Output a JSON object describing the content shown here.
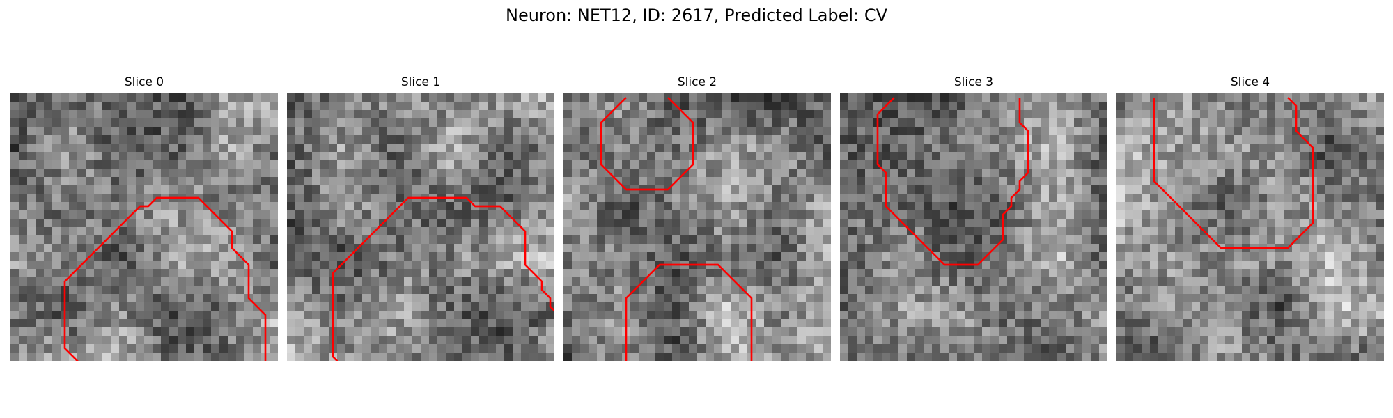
{
  "figure": {
    "title": "Neuron: NET12, ID: 2617, Predicted Label: CV",
    "contour_color": "#ff0000",
    "colormap": "gray"
  },
  "panels": [
    {
      "title": "Slice 0",
      "contour": [
        [
          12,
          37
        ],
        [
          11,
          36
        ],
        [
          11,
          35
        ],
        [
          10,
          34
        ],
        [
          9,
          33
        ],
        [
          8,
          32
        ],
        [
          7,
          31
        ],
        [
          6,
          30
        ],
        [
          6,
          29
        ],
        [
          6,
          28
        ],
        [
          6,
          27
        ],
        [
          6,
          26
        ],
        [
          6,
          25
        ],
        [
          6,
          24
        ],
        [
          6,
          23
        ],
        [
          6,
          22
        ],
        [
          7,
          21
        ],
        [
          8,
          20
        ],
        [
          9,
          19
        ],
        [
          10,
          18
        ],
        [
          11,
          17
        ],
        [
          12,
          16
        ],
        [
          13,
          15
        ],
        [
          14,
          14
        ],
        [
          15,
          13
        ],
        [
          16,
          13
        ],
        [
          17,
          12
        ],
        [
          18,
          12
        ],
        [
          19,
          12
        ],
        [
          20,
          12
        ],
        [
          21,
          12
        ],
        [
          22,
          12
        ],
        [
          23,
          13
        ],
        [
          24,
          14
        ],
        [
          25,
          15
        ],
        [
          26,
          16
        ],
        [
          26,
          17
        ],
        [
          26,
          18
        ],
        [
          27,
          19
        ],
        [
          28,
          20
        ],
        [
          28,
          21
        ],
        [
          28,
          22
        ],
        [
          28,
          23
        ],
        [
          28,
          24
        ],
        [
          29,
          25
        ],
        [
          30,
          26
        ],
        [
          30,
          27
        ],
        [
          30,
          28
        ],
        [
          30,
          29
        ],
        [
          30,
          30
        ],
        [
          30,
          31
        ],
        [
          30,
          32
        ],
        [
          30,
          33
        ],
        [
          30,
          34
        ],
        [
          29,
          35
        ],
        [
          28,
          36
        ],
        [
          28,
          37
        ]
      ]
    },
    {
      "title": "Slice 1",
      "contour": [
        [
          8,
          37
        ],
        [
          7,
          36
        ],
        [
          7,
          35
        ],
        [
          6,
          34
        ],
        [
          6,
          33
        ],
        [
          6,
          32
        ],
        [
          5,
          31
        ],
        [
          5,
          30
        ],
        [
          5,
          29
        ],
        [
          5,
          28
        ],
        [
          5,
          27
        ],
        [
          5,
          26
        ],
        [
          5,
          25
        ],
        [
          5,
          24
        ],
        [
          5,
          23
        ],
        [
          5,
          22
        ],
        [
          5,
          21
        ],
        [
          6,
          20
        ],
        [
          7,
          19
        ],
        [
          8,
          18
        ],
        [
          9,
          17
        ],
        [
          10,
          16
        ],
        [
          11,
          15
        ],
        [
          12,
          14
        ],
        [
          13,
          13
        ],
        [
          14,
          12
        ],
        [
          15,
          12
        ],
        [
          16,
          12
        ],
        [
          17,
          12
        ],
        [
          18,
          12
        ],
        [
          19,
          12
        ],
        [
          20,
          12
        ],
        [
          21,
          12
        ],
        [
          22,
          13
        ],
        [
          23,
          13
        ],
        [
          24,
          13
        ],
        [
          25,
          13
        ],
        [
          26,
          14
        ],
        [
          27,
          15
        ],
        [
          28,
          16
        ],
        [
          28,
          17
        ],
        [
          28,
          18
        ],
        [
          28,
          19
        ],
        [
          28,
          20
        ],
        [
          29,
          21
        ],
        [
          30,
          22
        ],
        [
          30,
          23
        ],
        [
          31,
          24
        ],
        [
          31,
          25
        ],
        [
          32,
          26
        ],
        [
          32,
          27
        ],
        [
          32,
          28
        ],
        [
          32,
          29
        ],
        [
          32,
          30
        ],
        [
          32,
          31
        ],
        [
          32,
          32
        ],
        [
          32,
          33
        ],
        [
          32,
          34
        ],
        [
          31,
          35
        ],
        [
          30,
          36
        ],
        [
          29,
          37
        ]
      ]
    },
    {
      "title": "Slice 2",
      "contour_parts": [
        [
          [
            7,
            0
          ],
          [
            6,
            1
          ],
          [
            5,
            2
          ],
          [
            4,
            3
          ],
          [
            4,
            4
          ],
          [
            4,
            5
          ],
          [
            4,
            6
          ],
          [
            4,
            7
          ],
          [
            4,
            8
          ],
          [
            5,
            9
          ],
          [
            6,
            10
          ],
          [
            7,
            11
          ],
          [
            8,
            11
          ],
          [
            9,
            11
          ],
          [
            10,
            11
          ],
          [
            11,
            11
          ],
          [
            12,
            11
          ],
          [
            13,
            10
          ],
          [
            14,
            9
          ],
          [
            15,
            8
          ],
          [
            15,
            7
          ],
          [
            15,
            6
          ],
          [
            15,
            5
          ],
          [
            15,
            4
          ],
          [
            15,
            3
          ],
          [
            14,
            2
          ],
          [
            13,
            1
          ],
          [
            12,
            0
          ]
        ],
        [
          [
            9,
            37
          ],
          [
            8,
            36
          ],
          [
            7,
            35
          ],
          [
            7,
            34
          ],
          [
            7,
            33
          ],
          [
            7,
            32
          ],
          [
            7,
            31
          ],
          [
            7,
            30
          ],
          [
            7,
            29
          ],
          [
            7,
            28
          ],
          [
            7,
            27
          ],
          [
            7,
            26
          ],
          [
            7,
            25
          ],
          [
            7,
            24
          ],
          [
            8,
            23
          ],
          [
            9,
            22
          ],
          [
            10,
            21
          ],
          [
            11,
            20
          ],
          [
            12,
            20
          ],
          [
            13,
            20
          ],
          [
            14,
            20
          ],
          [
            15,
            20
          ],
          [
            16,
            20
          ],
          [
            17,
            20
          ],
          [
            18,
            20
          ],
          [
            19,
            21
          ],
          [
            20,
            22
          ],
          [
            21,
            23
          ],
          [
            22,
            24
          ],
          [
            22,
            25
          ],
          [
            22,
            26
          ],
          [
            22,
            27
          ],
          [
            22,
            28
          ],
          [
            22,
            29
          ],
          [
            22,
            30
          ],
          [
            22,
            31
          ],
          [
            22,
            32
          ],
          [
            22,
            33
          ],
          [
            22,
            34
          ],
          [
            22,
            35
          ],
          [
            21,
            36
          ],
          [
            20,
            37
          ]
        ]
      ]
    },
    {
      "title": "Slice 3",
      "contour": [
        [
          6,
          0
        ],
        [
          5,
          1
        ],
        [
          4,
          2
        ],
        [
          4,
          3
        ],
        [
          4,
          4
        ],
        [
          4,
          5
        ],
        [
          4,
          6
        ],
        [
          4,
          7
        ],
        [
          4,
          8
        ],
        [
          5,
          9
        ],
        [
          5,
          10
        ],
        [
          5,
          11
        ],
        [
          5,
          12
        ],
        [
          5,
          13
        ],
        [
          6,
          14
        ],
        [
          7,
          15
        ],
        [
          8,
          16
        ],
        [
          9,
          17
        ],
        [
          10,
          18
        ],
        [
          11,
          19
        ],
        [
          12,
          20
        ],
        [
          13,
          20
        ],
        [
          14,
          20
        ],
        [
          15,
          20
        ],
        [
          16,
          20
        ],
        [
          17,
          19
        ],
        [
          18,
          18
        ],
        [
          19,
          17
        ],
        [
          19,
          16
        ],
        [
          19,
          15
        ],
        [
          19,
          14
        ],
        [
          20,
          13
        ],
        [
          20,
          12
        ],
        [
          21,
          11
        ],
        [
          21,
          10
        ],
        [
          22,
          9
        ],
        [
          22,
          8
        ],
        [
          22,
          7
        ],
        [
          22,
          6
        ],
        [
          22,
          5
        ],
        [
          22,
          4
        ],
        [
          21,
          3
        ],
        [
          21,
          2
        ],
        [
          21,
          1
        ],
        [
          21,
          0
        ]
      ]
    },
    {
      "title": "Slice 4",
      "contour": [
        [
          4,
          0
        ],
        [
          4,
          1
        ],
        [
          4,
          2
        ],
        [
          4,
          3
        ],
        [
          4,
          4
        ],
        [
          4,
          5
        ],
        [
          4,
          6
        ],
        [
          4,
          7
        ],
        [
          4,
          8
        ],
        [
          4,
          9
        ],
        [
          4,
          10
        ],
        [
          5,
          11
        ],
        [
          6,
          12
        ],
        [
          7,
          13
        ],
        [
          8,
          14
        ],
        [
          9,
          15
        ],
        [
          10,
          16
        ],
        [
          11,
          17
        ],
        [
          12,
          18
        ],
        [
          13,
          18
        ],
        [
          14,
          18
        ],
        [
          15,
          18
        ],
        [
          16,
          18
        ],
        [
          17,
          18
        ],
        [
          18,
          18
        ],
        [
          19,
          18
        ],
        [
          20,
          18
        ],
        [
          21,
          17
        ],
        [
          22,
          16
        ],
        [
          23,
          15
        ],
        [
          23,
          14
        ],
        [
          23,
          13
        ],
        [
          23,
          12
        ],
        [
          23,
          11
        ],
        [
          23,
          10
        ],
        [
          23,
          9
        ],
        [
          23,
          8
        ],
        [
          23,
          7
        ],
        [
          23,
          6
        ],
        [
          22,
          5
        ],
        [
          21,
          4
        ],
        [
          21,
          3
        ],
        [
          21,
          2
        ],
        [
          21,
          1
        ],
        [
          20,
          0
        ]
      ]
    }
  ]
}
